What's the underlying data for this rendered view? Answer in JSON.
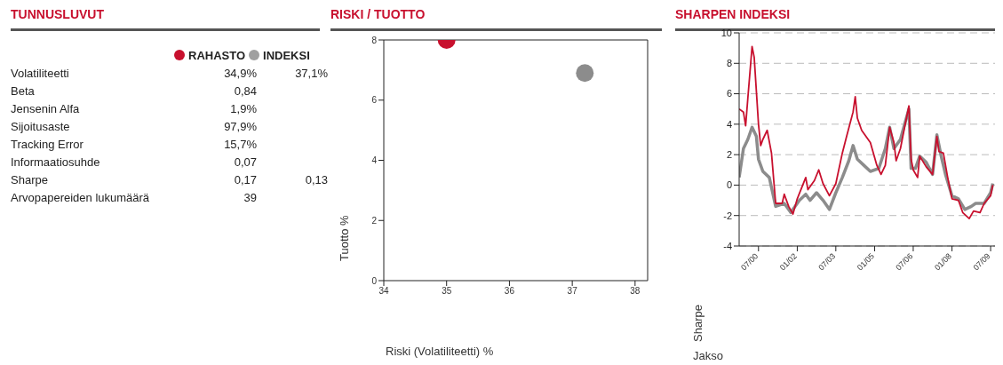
{
  "chart_data": [
    {
      "type": "other",
      "title": "TUNNUSLUVUT",
      "categories": [
        "Volatiliteetti",
        "Beta",
        "Jensenin Alfa",
        "Sijoitusaste",
        "Tracking Error",
        "Informaatiosuhde",
        "Sharpe",
        "Arvopapereiden lukumäärä"
      ],
      "series": [
        {
          "name": "RAHASTO",
          "color": "#c8102e",
          "values": [
            34.9,
            0.84,
            1.9,
            97.9,
            15.7,
            0.07,
            0.17,
            39
          ],
          "value_labels": [
            "34,9%",
            "0,84",
            "1,9%",
            "97,9%",
            "15,7%",
            "0,07",
            "0,17",
            "39"
          ]
        },
        {
          "name": "INDEKSI",
          "color": "#a0a0a0",
          "values": [
            37.1,
            null,
            null,
            null,
            null,
            null,
            0.13,
            null
          ],
          "value_labels": [
            "37,1%",
            null,
            null,
            null,
            null,
            null,
            "0,13",
            null
          ]
        }
      ]
    },
    {
      "type": "scatter",
      "title": "RISKI / TUOTTO",
      "xlabel": "Riski (Volatiliteetti) %",
      "ylabel": "Tuotto %",
      "xlim": [
        34,
        38.2
      ],
      "xticks": [
        34,
        35,
        36,
        37,
        38
      ],
      "ylim": [
        0,
        8
      ],
      "yticks": [
        0,
        2,
        4,
        6,
        8
      ],
      "marker": "circle",
      "series": [
        {
          "color": "#c8102e",
          "x": [
            35.0
          ],
          "values": [
            8.0
          ]
        },
        {
          "color": "#8c8c8c",
          "x": [
            37.2
          ],
          "values": [
            6.9
          ]
        }
      ]
    },
    {
      "type": "line",
      "title": "SHARPEN INDEKSI",
      "xlabel": "Jakso",
      "ylabel": "Sharpe",
      "xlim": [
        "1999-10",
        "2009-09"
      ],
      "xticks": [
        {
          "value": "2000-07",
          "label": "07/00"
        },
        {
          "value": "2002-01",
          "label": "01/02"
        },
        {
          "value": "2003-07",
          "label": "07/03"
        },
        {
          "value": "2005-01",
          "label": "01/05"
        },
        {
          "value": "2006-07",
          "label": "07/06"
        },
        {
          "value": "2008-01",
          "label": "01/08"
        },
        {
          "value": "2009-07",
          "label": "07/09"
        }
      ],
      "ylim": [
        -4,
        10
      ],
      "yticks": [
        -4,
        -2,
        0,
        2,
        4,
        6,
        8,
        10
      ],
      "grid": "y",
      "line_style": "solid",
      "series": [
        {
          "color": "#8c8c8c",
          "x": [
            "1999-10",
            "1999-12",
            "2000-02",
            "2000-04",
            "2000-06",
            "2000-07",
            "2000-09",
            "2000-12",
            "2001-03",
            "2001-07",
            "2001-10",
            "2002-02",
            "2002-05",
            "2002-07",
            "2002-10",
            "2003-01",
            "2003-04",
            "2003-07",
            "2003-10",
            "2004-01",
            "2004-03",
            "2004-05",
            "2004-08",
            "2004-11",
            "2005-03",
            "2005-06",
            "2005-08",
            "2005-10",
            "2006-01",
            "2006-03",
            "2006-05",
            "2006-06",
            "2006-08",
            "2006-10",
            "2007-01",
            "2007-04",
            "2007-06",
            "2007-08",
            "2007-10",
            "2008-01",
            "2008-04",
            "2008-07",
            "2008-10",
            "2008-12",
            "2009-04",
            "2009-07",
            "2009-08"
          ],
          "values": [
            0.5,
            2.4,
            3.0,
            3.8,
            3.2,
            1.7,
            0.9,
            0.5,
            -1.4,
            -1.2,
            -1.8,
            -1.0,
            -0.6,
            -1.0,
            -0.5,
            -1.0,
            -1.6,
            -0.5,
            0.5,
            1.6,
            2.6,
            1.7,
            1.3,
            0.9,
            1.1,
            2.4,
            3.8,
            2.4,
            3.0,
            4.0,
            5.0,
            1.1,
            1.1,
            1.9,
            1.5,
            0.7,
            3.3,
            1.9,
            0.7,
            -0.7,
            -0.9,
            -1.6,
            -1.4,
            -1.2,
            -1.2,
            -0.5,
            0.1
          ]
        },
        {
          "color": "#c8102e",
          "x": [
            "1999-10",
            "1999-12",
            "2000-01",
            "2000-02",
            "2000-04",
            "2000-05",
            "2000-07",
            "2000-08",
            "2000-09",
            "2000-11",
            "2001-01",
            "2001-03",
            "2001-06",
            "2001-07",
            "2001-09",
            "2001-11",
            "2002-01",
            "2002-05",
            "2002-06",
            "2002-09",
            "2002-11",
            "2003-01",
            "2003-04",
            "2003-07",
            "2003-10",
            "2003-12",
            "2004-03",
            "2004-04",
            "2004-05",
            "2004-07",
            "2004-11",
            "2005-02",
            "2005-04",
            "2005-06",
            "2005-08",
            "2005-10",
            "2005-11",
            "2006-01",
            "2006-03",
            "2006-05",
            "2006-06",
            "2006-07",
            "2006-09",
            "2006-10",
            "2007-01",
            "2007-04",
            "2007-06",
            "2007-07",
            "2007-09",
            "2007-11",
            "2008-01",
            "2008-04",
            "2008-06",
            "2008-09",
            "2008-11",
            "2009-02",
            "2009-04",
            "2009-07",
            "2009-08"
          ],
          "values": [
            5.0,
            4.8,
            3.9,
            5.7,
            9.1,
            8.4,
            4.0,
            2.6,
            3.0,
            3.6,
            2.1,
            -1.2,
            -1.2,
            -0.6,
            -1.4,
            -1.9,
            -0.9,
            0.5,
            -0.3,
            0.3,
            1.0,
            0.1,
            -0.7,
            0.1,
            2.1,
            3.2,
            4.8,
            5.8,
            4.4,
            3.6,
            2.8,
            1.3,
            0.7,
            1.3,
            3.8,
            2.8,
            1.6,
            2.4,
            3.8,
            5.2,
            1.7,
            1.0,
            0.5,
            1.9,
            1.2,
            0.7,
            3.2,
            2.2,
            2.1,
            0.5,
            -0.9,
            -1.0,
            -1.8,
            -2.2,
            -1.7,
            -1.8,
            -1.2,
            -0.7,
            0.0
          ]
        }
      ]
    }
  ]
}
